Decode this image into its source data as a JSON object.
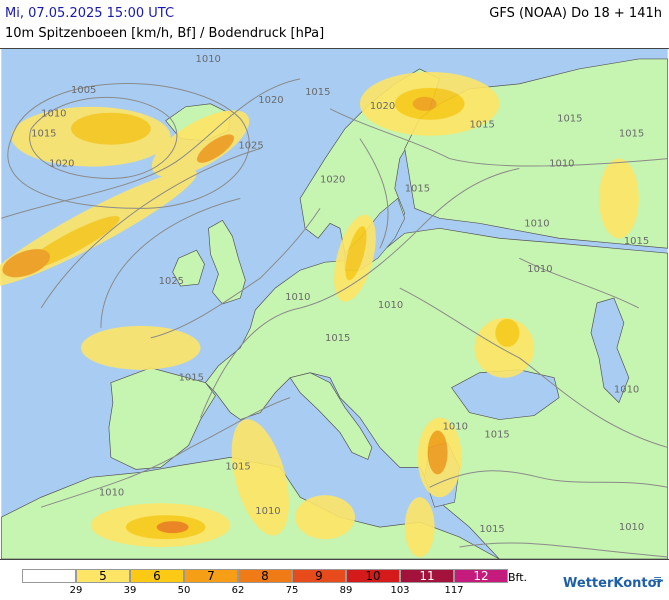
{
  "header": {
    "datetime": "Mi, 07.05.2025 15:00 UTC",
    "model": "GFS (NOAA) Do 18 + 141h",
    "parameter": "10m Spitzenboeen [km/h, Bf] / Bodendruck [hPa]"
  },
  "colors": {
    "sea": "#a9cdf2",
    "land": "#c6f4b1",
    "isobar": "#8a8a8a",
    "border": "#555555"
  },
  "isobar_labels": [
    "1010",
    "1005",
    "1010",
    "1015",
    "1020",
    "1025",
    "1020",
    "1025",
    "1015",
    "1020",
    "1015",
    "1015",
    "1015",
    "1015",
    "1020",
    "1010",
    "1015",
    "1015",
    "1010",
    "1010",
    "1010",
    "1015",
    "1010",
    "1010",
    "1015",
    "1010",
    "1015",
    "1010",
    "1015",
    "1010",
    "1010"
  ],
  "legend": {
    "classes": [
      {
        "label": "",
        "color": "#ffffff"
      },
      {
        "label": "5",
        "color": "#fee566"
      },
      {
        "label": "6",
        "color": "#fcc915"
      },
      {
        "label": "7",
        "color": "#f59e16"
      },
      {
        "label": "8",
        "color": "#ef7a16"
      },
      {
        "label": "9",
        "color": "#e74b1c"
      },
      {
        "label": "10",
        "color": "#d41a1a"
      },
      {
        "label": "11",
        "color": "#a3123a"
      },
      {
        "label": "12",
        "color": "#c51b7d"
      }
    ],
    "thresholds": [
      "29",
      "39",
      "50",
      "62",
      "75",
      "89",
      "103",
      "117"
    ],
    "unit": "Bft."
  },
  "logo": {
    "text": "WetterKontor",
    "mark": "≡"
  }
}
